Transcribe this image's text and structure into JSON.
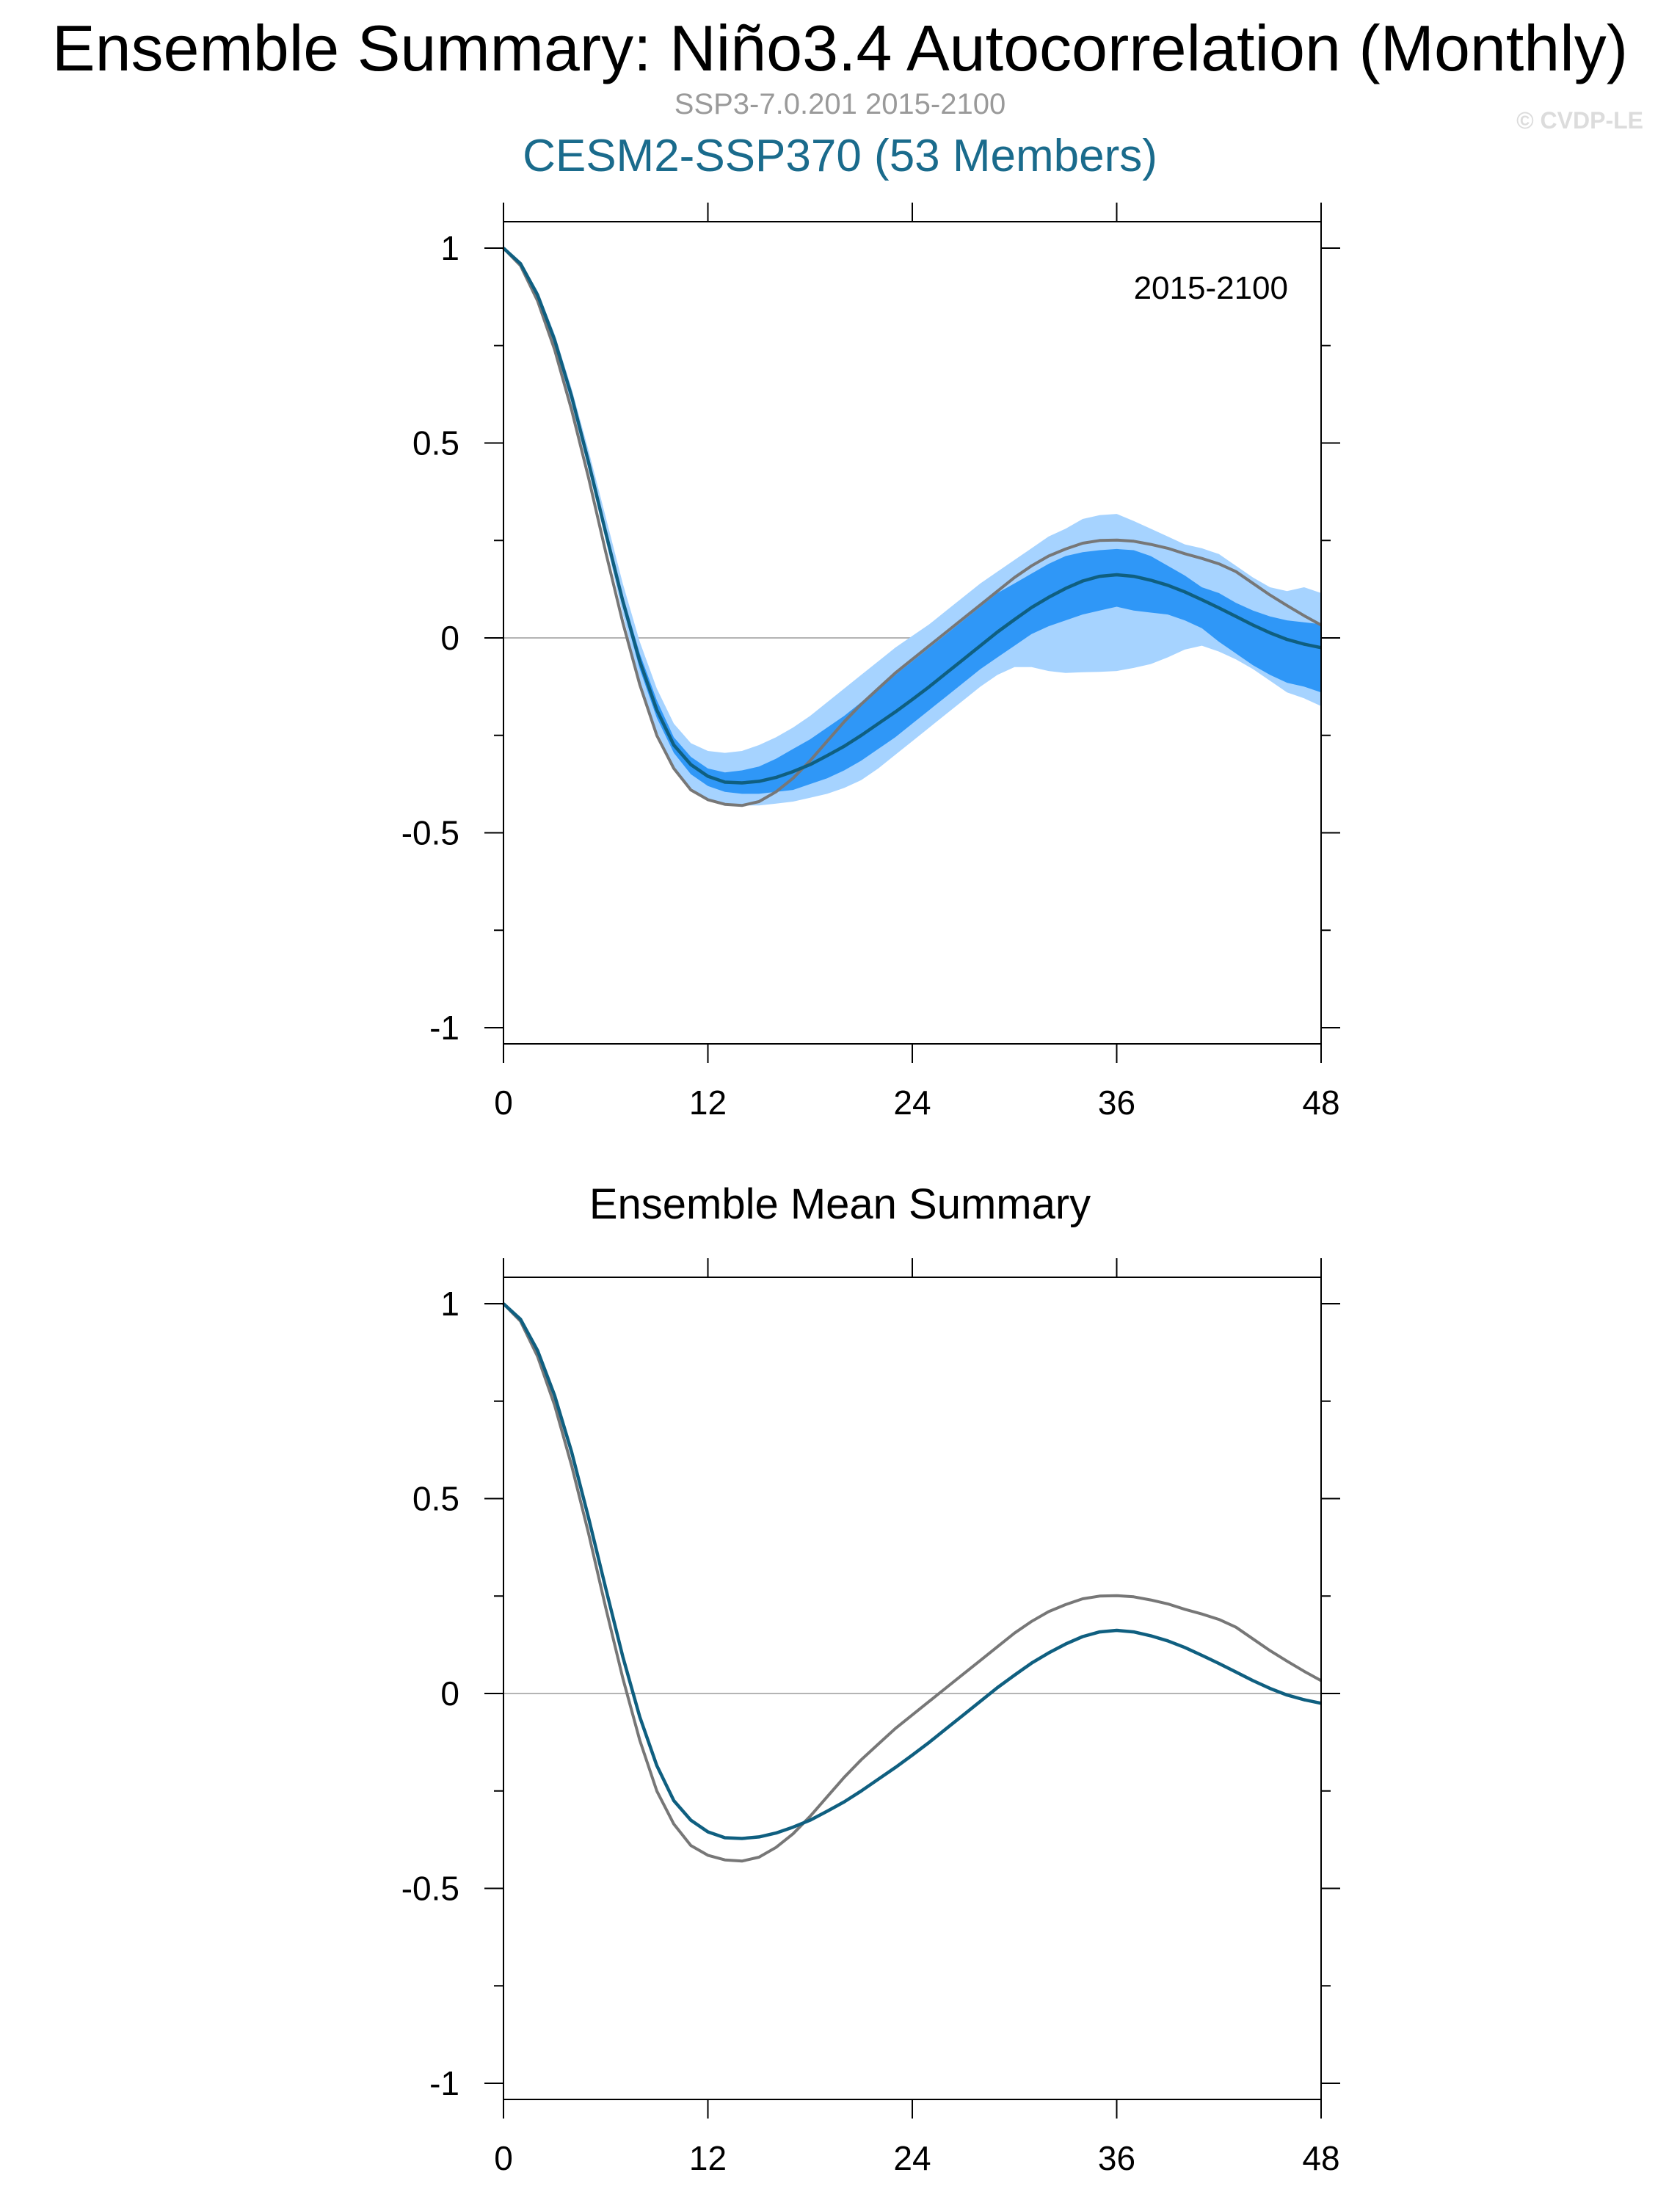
{
  "header": {
    "title": "Ensemble Summary: Niño3.4 Autocorrelation (Monthly)",
    "subtitle": "SSP3-7.0.201 2015-2100",
    "model": "CESM2-SSP370 (53 Members)",
    "copyright": "© CVDP-LE"
  },
  "colors": {
    "outer_band": "#a6d3ff",
    "inner_band": "#2f97f7",
    "ensemble_mean": "#0f5f80",
    "observations": "#777777",
    "model_title": "#1a6b8c"
  },
  "chart_data": [
    {
      "type": "area",
      "title": "",
      "annotation": "2015-2100",
      "xlabel": "",
      "ylabel": "",
      "xlim": [
        0,
        48
      ],
      "ylim": [
        -1.05,
        1.05
      ],
      "xticks": [
        0,
        12,
        24,
        36,
        48
      ],
      "xtick_labels": [
        "0",
        "12",
        "24",
        "36",
        "48"
      ],
      "yticks": [
        1,
        0.5,
        0,
        -0.5,
        -1
      ],
      "ytick_labels": [
        "1",
        "0.5",
        "0",
        "-0.5",
        "-1"
      ],
      "zero_line": true,
      "x": [
        0,
        1,
        2,
        3,
        4,
        5,
        6,
        7,
        8,
        9,
        10,
        11,
        12,
        13,
        14,
        15,
        16,
        17,
        18,
        19,
        20,
        21,
        22,
        23,
        24,
        25,
        26,
        27,
        28,
        29,
        30,
        31,
        32,
        33,
        34,
        35,
        36,
        37,
        38,
        39,
        40,
        41,
        42,
        43,
        44,
        45,
        46,
        47,
        48
      ],
      "series": [
        {
          "role": "outer_band",
          "upper": [
            1.0,
            0.965,
            0.89,
            0.78,
            0.64,
            0.48,
            0.31,
            0.14,
            -0.01,
            -0.13,
            -0.22,
            -0.27,
            -0.29,
            -0.295,
            -0.29,
            -0.275,
            -0.255,
            -0.23,
            -0.2,
            -0.165,
            -0.13,
            -0.095,
            -0.06,
            -0.025,
            0.005,
            0.035,
            0.07,
            0.105,
            0.14,
            0.17,
            0.2,
            0.23,
            0.26,
            0.28,
            0.305,
            0.315,
            0.318,
            0.3,
            0.28,
            0.26,
            0.24,
            0.23,
            0.215,
            0.185,
            0.155,
            0.13,
            0.12,
            0.13,
            0.115
          ],
          "lower": [
            1.0,
            0.955,
            0.87,
            0.75,
            0.6,
            0.43,
            0.25,
            0.06,
            -0.11,
            -0.24,
            -0.33,
            -0.385,
            -0.415,
            -0.428,
            -0.43,
            -0.43,
            -0.425,
            -0.42,
            -0.41,
            -0.4,
            -0.385,
            -0.365,
            -0.335,
            -0.3,
            -0.265,
            -0.23,
            -0.195,
            -0.16,
            -0.125,
            -0.095,
            -0.075,
            -0.075,
            -0.085,
            -0.09,
            -0.088,
            -0.087,
            -0.085,
            -0.077,
            -0.067,
            -0.05,
            -0.03,
            -0.02,
            -0.035,
            -0.055,
            -0.08,
            -0.11,
            -0.14,
            -0.155,
            -0.175
          ]
        },
        {
          "role": "inner_band",
          "upper": [
            1.0,
            0.962,
            0.885,
            0.77,
            0.625,
            0.46,
            0.285,
            0.11,
            -0.04,
            -0.16,
            -0.255,
            -0.305,
            -0.335,
            -0.345,
            -0.34,
            -0.33,
            -0.31,
            -0.285,
            -0.26,
            -0.23,
            -0.2,
            -0.165,
            -0.13,
            -0.095,
            -0.06,
            -0.025,
            0.01,
            0.045,
            0.08,
            0.115,
            0.14,
            0.165,
            0.19,
            0.21,
            0.22,
            0.225,
            0.228,
            0.225,
            0.21,
            0.185,
            0.16,
            0.13,
            0.115,
            0.09,
            0.07,
            0.055,
            0.045,
            0.04,
            0.035
          ],
          "lower": [
            1.0,
            0.958,
            0.875,
            0.76,
            0.61,
            0.44,
            0.26,
            0.08,
            -0.08,
            -0.205,
            -0.295,
            -0.35,
            -0.38,
            -0.395,
            -0.4,
            -0.4,
            -0.395,
            -0.39,
            -0.375,
            -0.36,
            -0.34,
            -0.315,
            -0.285,
            -0.255,
            -0.22,
            -0.185,
            -0.15,
            -0.115,
            -0.08,
            -0.05,
            -0.02,
            0.01,
            0.03,
            0.045,
            0.06,
            0.07,
            0.08,
            0.07,
            0.065,
            0.06,
            0.045,
            0.025,
            -0.01,
            -0.04,
            -0.07,
            -0.095,
            -0.115,
            -0.125,
            -0.14
          ]
        },
        {
          "role": "ensemble_mean",
          "values": [
            1.0,
            0.96,
            0.88,
            0.765,
            0.62,
            0.45,
            0.27,
            0.095,
            -0.06,
            -0.185,
            -0.275,
            -0.325,
            -0.355,
            -0.37,
            -0.372,
            -0.368,
            -0.358,
            -0.343,
            -0.325,
            -0.302,
            -0.278,
            -0.25,
            -0.22,
            -0.19,
            -0.158,
            -0.125,
            -0.09,
            -0.055,
            -0.02,
            0.015,
            0.047,
            0.078,
            0.104,
            0.127,
            0.146,
            0.158,
            0.162,
            0.158,
            0.148,
            0.135,
            0.118,
            0.098,
            0.077,
            0.055,
            0.033,
            0.013,
            -0.004,
            -0.016,
            -0.025
          ]
        },
        {
          "role": "observations",
          "values": [
            1.0,
            0.955,
            0.865,
            0.74,
            0.585,
            0.41,
            0.22,
            0.04,
            -0.12,
            -0.25,
            -0.335,
            -0.39,
            -0.415,
            -0.427,
            -0.43,
            -0.42,
            -0.395,
            -0.36,
            -0.315,
            -0.265,
            -0.215,
            -0.17,
            -0.13,
            -0.09,
            -0.055,
            -0.02,
            0.015,
            0.05,
            0.085,
            0.12,
            0.155,
            0.185,
            0.21,
            0.228,
            0.243,
            0.25,
            0.251,
            0.248,
            0.24,
            0.23,
            0.216,
            0.204,
            0.19,
            0.17,
            0.14,
            0.11,
            0.083,
            0.057,
            0.033
          ]
        }
      ]
    },
    {
      "type": "line",
      "title": "Ensemble Mean Summary",
      "xlabel": "",
      "ylabel": "",
      "xlim": [
        0,
        48
      ],
      "ylim": [
        -1.05,
        1.05
      ],
      "xticks": [
        0,
        12,
        24,
        36,
        48
      ],
      "xtick_labels": [
        "0",
        "12",
        "24",
        "36",
        "48"
      ],
      "yticks": [
        1,
        0.5,
        0,
        -0.5,
        -1
      ],
      "ytick_labels": [
        "1",
        "0.5",
        "0",
        "-0.5",
        "-1"
      ],
      "zero_line": true,
      "x": [
        0,
        1,
        2,
        3,
        4,
        5,
        6,
        7,
        8,
        9,
        10,
        11,
        12,
        13,
        14,
        15,
        16,
        17,
        18,
        19,
        20,
        21,
        22,
        23,
        24,
        25,
        26,
        27,
        28,
        29,
        30,
        31,
        32,
        33,
        34,
        35,
        36,
        37,
        38,
        39,
        40,
        41,
        42,
        43,
        44,
        45,
        46,
        47,
        48
      ],
      "series": [
        {
          "role": "ensemble_mean",
          "values": [
            1.0,
            0.96,
            0.88,
            0.765,
            0.62,
            0.45,
            0.27,
            0.095,
            -0.06,
            -0.185,
            -0.275,
            -0.325,
            -0.355,
            -0.37,
            -0.372,
            -0.368,
            -0.358,
            -0.343,
            -0.325,
            -0.302,
            -0.278,
            -0.25,
            -0.22,
            -0.19,
            -0.158,
            -0.125,
            -0.09,
            -0.055,
            -0.02,
            0.015,
            0.047,
            0.078,
            0.104,
            0.127,
            0.146,
            0.158,
            0.162,
            0.158,
            0.148,
            0.135,
            0.118,
            0.098,
            0.077,
            0.055,
            0.033,
            0.013,
            -0.004,
            -0.016,
            -0.025
          ]
        },
        {
          "role": "observations",
          "values": [
            1.0,
            0.955,
            0.865,
            0.74,
            0.585,
            0.41,
            0.22,
            0.04,
            -0.12,
            -0.25,
            -0.335,
            -0.39,
            -0.415,
            -0.427,
            -0.43,
            -0.42,
            -0.395,
            -0.36,
            -0.315,
            -0.265,
            -0.215,
            -0.17,
            -0.13,
            -0.09,
            -0.055,
            -0.02,
            0.015,
            0.05,
            0.085,
            0.12,
            0.155,
            0.185,
            0.21,
            0.228,
            0.243,
            0.25,
            0.251,
            0.248,
            0.24,
            0.23,
            0.216,
            0.204,
            0.19,
            0.17,
            0.14,
            0.11,
            0.083,
            0.057,
            0.033
          ]
        }
      ]
    }
  ]
}
